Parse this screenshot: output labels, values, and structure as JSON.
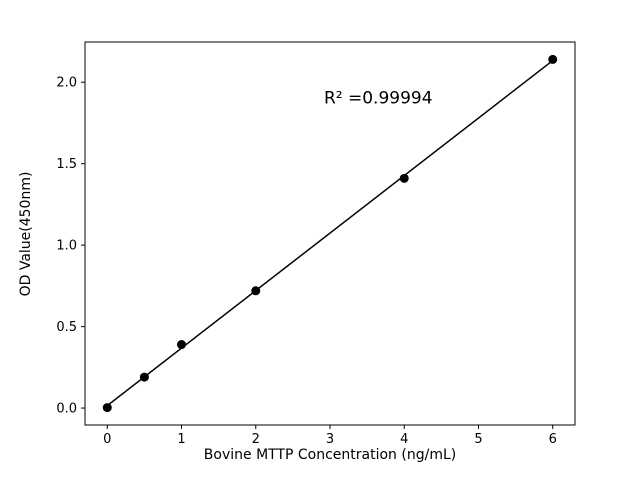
{
  "figure": {
    "background": "#ffffff"
  },
  "chart_data": {
    "type": "scatter",
    "title": "",
    "xlabel": "Bovine MTTP Concentration (ng/mL)",
    "ylabel": "OD Value(450nm)",
    "x": [
      0,
      0.5,
      1,
      2,
      4,
      6
    ],
    "y": [
      0.003,
      0.19,
      0.39,
      0.72,
      1.41,
      2.14
    ],
    "fit_line": {
      "x": [
        0,
        6
      ],
      "y": [
        0.015,
        2.133
      ]
    },
    "annotation": {
      "text": "R² =0.99994",
      "x": 3.65,
      "y": 1.87
    },
    "xlim": [
      -0.3,
      6.3
    ],
    "ylim": [
      -0.104,
      2.247
    ],
    "xticks": [
      "0",
      "1",
      "2",
      "3",
      "4",
      "5",
      "6"
    ],
    "ytick_labels": [
      "0.0",
      "0.5",
      "1.0",
      "1.5",
      "2.0"
    ],
    "grid": false,
    "legend": false,
    "marker_color": "#000000",
    "line_color": "#000000",
    "axis_color": "#000000"
  }
}
